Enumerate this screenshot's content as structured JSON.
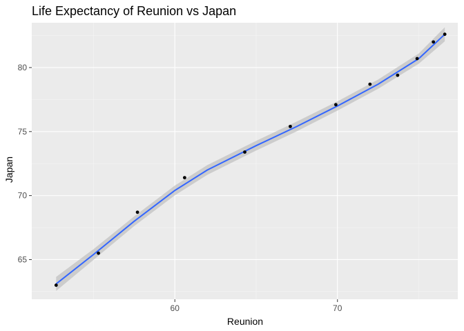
{
  "chart_data": {
    "type": "scatter",
    "title": "Life Expectancy of Reunion vs Japan",
    "xlabel": "Reunion",
    "ylabel": "Japan",
    "xlim": [
      51.2,
      77.4
    ],
    "ylim": [
      61.9,
      83.5
    ],
    "x_ticks": [
      60,
      70
    ],
    "y_ticks": [
      65,
      70,
      75,
      80
    ],
    "grid": true,
    "legend": "none",
    "points": [
      {
        "x": 52.7,
        "y": 63.0
      },
      {
        "x": 55.3,
        "y": 65.5
      },
      {
        "x": 57.7,
        "y": 68.7
      },
      {
        "x": 60.6,
        "y": 71.4
      },
      {
        "x": 64.3,
        "y": 73.4
      },
      {
        "x": 67.1,
        "y": 75.4
      },
      {
        "x": 69.9,
        "y": 77.1
      },
      {
        "x": 72.0,
        "y": 78.7
      },
      {
        "x": 73.7,
        "y": 79.4
      },
      {
        "x": 74.9,
        "y": 80.7
      },
      {
        "x": 75.9,
        "y": 82.0
      },
      {
        "x": 76.6,
        "y": 82.6
      }
    ],
    "smooth": {
      "method": "loess",
      "fit": [
        {
          "x": 52.7,
          "y": 63.1
        },
        {
          "x": 55.0,
          "y": 65.4
        },
        {
          "x": 57.5,
          "y": 68.0
        },
        {
          "x": 60.0,
          "y": 70.4
        },
        {
          "x": 62.0,
          "y": 72.0
        },
        {
          "x": 65.0,
          "y": 73.9
        },
        {
          "x": 67.5,
          "y": 75.4
        },
        {
          "x": 70.0,
          "y": 77.0
        },
        {
          "x": 72.5,
          "y": 78.7
        },
        {
          "x": 75.0,
          "y": 80.7
        },
        {
          "x": 76.6,
          "y": 82.6
        }
      ],
      "se": [
        0.55,
        0.42,
        0.38,
        0.38,
        0.38,
        0.38,
        0.38,
        0.36,
        0.36,
        0.4,
        0.55
      ]
    },
    "colors": {
      "panel": "#ebebeb",
      "grid_major": "#ffffff",
      "grid_minor": "#f5f5f5",
      "points": "#000000",
      "line": "#3366ff",
      "ribbon": "#b8b8b8"
    }
  }
}
